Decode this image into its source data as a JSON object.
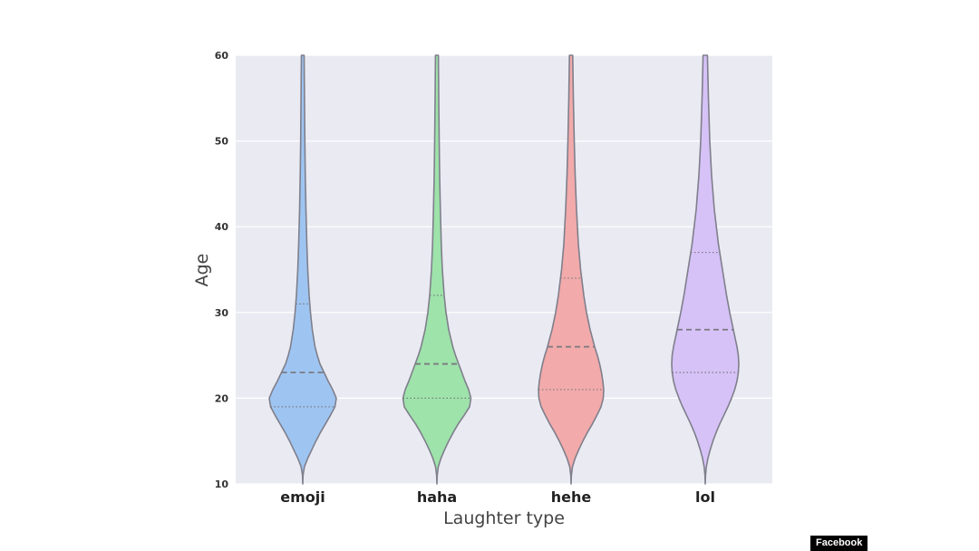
{
  "chart_data": {
    "type": "violin",
    "title": "",
    "xlabel": "Laughter type",
    "ylabel": "Age",
    "ylim": [
      10,
      60
    ],
    "yticks": [
      10,
      20,
      30,
      40,
      50,
      60
    ],
    "grid": true,
    "categories": [
      "emoji",
      "haha",
      "hehe",
      "lol"
    ],
    "colors": [
      "#9ec5f2",
      "#9ee3aa",
      "#f2aaaa",
      "#d6c2f7"
    ],
    "series": [
      {
        "median": 23,
        "q1": 19,
        "q3": 31,
        "max": 60,
        "min": 10,
        "profile": [
          [
            10,
            0.0
          ],
          [
            11,
            0.3
          ],
          [
            12,
            1.8
          ],
          [
            13,
            5.5
          ],
          [
            14,
            10.0
          ],
          [
            15,
            14.5
          ],
          [
            16,
            19.5
          ],
          [
            17,
            25.0
          ],
          [
            18,
            30.5
          ],
          [
            19,
            35.5
          ],
          [
            20,
            37.0
          ],
          [
            21,
            33.0
          ],
          [
            22,
            28.0
          ],
          [
            23,
            23.5
          ],
          [
            24,
            19.0
          ],
          [
            25,
            16.0
          ],
          [
            26,
            13.5
          ],
          [
            28,
            10.5
          ],
          [
            30,
            8.5
          ],
          [
            32,
            7.0
          ],
          [
            35,
            5.5
          ],
          [
            38,
            4.5
          ],
          [
            42,
            3.5
          ],
          [
            46,
            2.8
          ],
          [
            50,
            2.3
          ],
          [
            55,
            1.9
          ],
          [
            60,
            1.5
          ]
        ]
      },
      {
        "median": 24,
        "q1": 20,
        "q3": 32,
        "max": 60,
        "min": 10,
        "profile": [
          [
            10,
            0.0
          ],
          [
            11,
            0.3
          ],
          [
            12,
            1.5
          ],
          [
            13,
            4.5
          ],
          [
            14,
            8.5
          ],
          [
            15,
            13.0
          ],
          [
            16,
            18.0
          ],
          [
            17,
            23.5
          ],
          [
            18,
            30.0
          ],
          [
            19,
            36.0
          ],
          [
            20,
            37.5
          ],
          [
            21,
            35.0
          ],
          [
            22,
            31.0
          ],
          [
            23,
            27.5
          ],
          [
            24,
            24.0
          ],
          [
            25,
            20.5
          ],
          [
            26,
            17.5
          ],
          [
            28,
            13.0
          ],
          [
            30,
            10.0
          ],
          [
            32,
            8.0
          ],
          [
            35,
            6.0
          ],
          [
            38,
            4.8
          ],
          [
            42,
            3.8
          ],
          [
            46,
            3.0
          ],
          [
            50,
            2.5
          ],
          [
            55,
            2.0
          ],
          [
            60,
            1.6
          ]
        ]
      },
      {
        "median": 26,
        "q1": 21,
        "q3": 34,
        "max": 60,
        "min": 10,
        "profile": [
          [
            10,
            0.0
          ],
          [
            11,
            0.3
          ],
          [
            12,
            1.5
          ],
          [
            13,
            4.5
          ],
          [
            14,
            8.5
          ],
          [
            15,
            13.0
          ],
          [
            16,
            18.0
          ],
          [
            17,
            23.5
          ],
          [
            18,
            28.5
          ],
          [
            19,
            33.0
          ],
          [
            20,
            35.5
          ],
          [
            21,
            36.0
          ],
          [
            22,
            35.0
          ],
          [
            23,
            33.5
          ],
          [
            24,
            31.5
          ],
          [
            25,
            29.0
          ],
          [
            26,
            26.0
          ],
          [
            28,
            21.0
          ],
          [
            30,
            17.0
          ],
          [
            32,
            14.0
          ],
          [
            35,
            10.5
          ],
          [
            38,
            8.0
          ],
          [
            42,
            6.0
          ],
          [
            46,
            4.5
          ],
          [
            50,
            3.5
          ],
          [
            55,
            2.5
          ],
          [
            60,
            1.8
          ]
        ]
      },
      {
        "median": 28,
        "q1": 23,
        "q3": 37,
        "max": 60,
        "min": 10,
        "profile": [
          [
            10,
            0.0
          ],
          [
            11,
            0.3
          ],
          [
            12,
            1.2
          ],
          [
            13,
            3.0
          ],
          [
            14,
            5.5
          ],
          [
            15,
            8.5
          ],
          [
            16,
            12.0
          ],
          [
            17,
            16.0
          ],
          [
            18,
            20.5
          ],
          [
            19,
            25.0
          ],
          [
            20,
            29.0
          ],
          [
            21,
            32.5
          ],
          [
            22,
            35.0
          ],
          [
            23,
            36.5
          ],
          [
            24,
            37.0
          ],
          [
            25,
            36.5
          ],
          [
            26,
            35.0
          ],
          [
            28,
            31.0
          ],
          [
            30,
            27.0
          ],
          [
            32,
            23.5
          ],
          [
            35,
            19.0
          ],
          [
            38,
            14.5
          ],
          [
            42,
            10.0
          ],
          [
            46,
            7.0
          ],
          [
            50,
            5.0
          ],
          [
            55,
            3.5
          ],
          [
            60,
            2.4
          ]
        ]
      }
    ]
  },
  "credit_label": "Facebook"
}
